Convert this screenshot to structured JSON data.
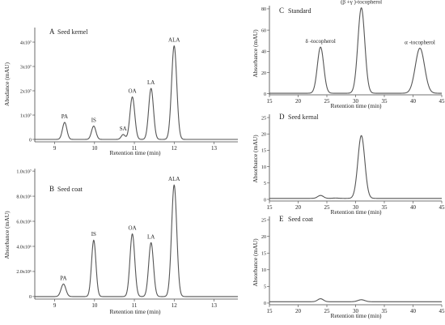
{
  "chart_data": [
    {
      "id": "A",
      "type": "line",
      "panel_letter": "A",
      "title": "Seed kernel",
      "xlabel": "Retention time (min)",
      "ylabel": "Abudance (mAU)",
      "xlim": [
        8.5,
        13.6
      ],
      "ylim": [
        -1000000,
        46000000
      ],
      "xticks": [
        9,
        10,
        11,
        12,
        13
      ],
      "xticklabels": [
        "9",
        "10",
        "11",
        "12",
        "13"
      ],
      "yticks": [
        0,
        10000000,
        20000000,
        30000000,
        40000000
      ],
      "yticklabels": [
        "0",
        "1x10⁷",
        "2x10⁷",
        "3x10⁷",
        "4x10⁷"
      ],
      "baseline": 0,
      "grid": false,
      "peaks": [
        {
          "label": "PA",
          "x": 9.25,
          "y": 7000000,
          "width": 0.055
        },
        {
          "label": "IS",
          "x": 9.98,
          "y": 5500000,
          "width": 0.055
        },
        {
          "label": "SA",
          "x": 10.72,
          "y": 2000000,
          "width": 0.05
        },
        {
          "label": "OA",
          "x": 10.95,
          "y": 17500000,
          "width": 0.06
        },
        {
          "label": "LA",
          "x": 11.42,
          "y": 21000000,
          "width": 0.06
        },
        {
          "label": "ALA",
          "x": 12.0,
          "y": 38500000,
          "width": 0.065
        }
      ]
    },
    {
      "id": "B",
      "type": "line",
      "panel_letter": "B",
      "title": "Seed coat",
      "xlabel": "Retention time (min)",
      "ylabel": "Absorbance (mAU)",
      "xlim": [
        8.5,
        13.6
      ],
      "ylim": [
        -200000,
        10200000
      ],
      "xticks": [
        9,
        10,
        11,
        12,
        13
      ],
      "xticklabels": [
        "9",
        "10",
        "11",
        "12",
        "13"
      ],
      "yticks": [
        0,
        2000000,
        4000000,
        6000000,
        8000000,
        10000000
      ],
      "yticklabels": [
        "0",
        "2.0x10⁶",
        "4.0x10⁶",
        "6.0x10⁶",
        "8.0x10⁶",
        "1.0x10⁷"
      ],
      "baseline": 0,
      "grid": false,
      "peaks": [
        {
          "label": "PA",
          "x": 9.22,
          "y": 1000000,
          "width": 0.06
        },
        {
          "label": "IS",
          "x": 9.98,
          "y": 4500000,
          "width": 0.055
        },
        {
          "label": "OA",
          "x": 10.95,
          "y": 5000000,
          "width": 0.06
        },
        {
          "label": "LA",
          "x": 11.42,
          "y": 4300000,
          "width": 0.06
        },
        {
          "label": "ALA",
          "x": 12.0,
          "y": 8900000,
          "width": 0.065
        }
      ]
    },
    {
      "id": "C",
      "type": "line",
      "panel_letter": "C",
      "title": "Standard",
      "xlabel": "Retention time (min)",
      "ylabel": "Absorbance (mAU)",
      "xlim": [
        15,
        45
      ],
      "ylim": [
        -1,
        83
      ],
      "xticks": [
        15,
        20,
        25,
        30,
        35,
        40,
        45
      ],
      "xticklabels": [
        "15",
        "20",
        "25",
        "30",
        "35",
        "40",
        "45"
      ],
      "yticks": [
        0,
        20,
        40,
        60,
        80
      ],
      "yticklabels": [
        "0",
        "20",
        "40",
        "60",
        "80"
      ],
      "baseline": 0.5,
      "grid": false,
      "peaks": [
        {
          "label": "δ -tocopherol",
          "x": 23.9,
          "y": 44,
          "width": 0.55
        },
        {
          "label": "(β +γ )-tocopherol",
          "x": 31.0,
          "y": 81,
          "width": 0.6
        },
        {
          "label": "α -tocopherol",
          "x": 41.2,
          "y": 43,
          "width": 0.8
        }
      ]
    },
    {
      "id": "D",
      "type": "line",
      "panel_letter": "D",
      "title": "Seed kernal",
      "xlabel": "Retention time (min)",
      "ylabel": "Absorbance (mAU)",
      "xlim": [
        15,
        45
      ],
      "ylim": [
        -0.5,
        26
      ],
      "xticks": [
        15,
        20,
        25,
        30,
        35,
        40,
        45
      ],
      "xticklabels": [
        "15",
        "20",
        "25",
        "30",
        "35",
        "40",
        "45"
      ],
      "yticks": [
        0,
        5,
        10,
        15,
        20,
        25
      ],
      "yticklabels": [
        "0",
        "5",
        "10",
        "15",
        "20",
        "25"
      ],
      "baseline": 0.3,
      "grid": false,
      "peaks": [
        {
          "label": "",
          "x": 23.9,
          "y": 1.2,
          "width": 0.5
        },
        {
          "label": "",
          "x": 26.5,
          "y": 0.4,
          "width": 0.5
        },
        {
          "label": "",
          "x": 31.0,
          "y": 19.5,
          "width": 0.6
        }
      ]
    },
    {
      "id": "E",
      "type": "line",
      "panel_letter": "E",
      "title": "Seed coat",
      "xlabel": "Retention time (min)",
      "ylabel": "Absorbance (mAU)",
      "xlim": [
        15,
        45
      ],
      "ylim": [
        -0.5,
        26
      ],
      "xticks": [
        15,
        20,
        25,
        30,
        35,
        40,
        45
      ],
      "xticklabels": [
        "15",
        "20",
        "25",
        "30",
        "35",
        "40",
        "45"
      ],
      "yticks": [
        0,
        5,
        10,
        15,
        20,
        25
      ],
      "yticklabels": [
        "0",
        "5",
        "10",
        "15",
        "20",
        "25"
      ],
      "baseline": 0.4,
      "grid": false,
      "peaks": [
        {
          "label": "",
          "x": 23.9,
          "y": 1.3,
          "width": 0.5
        },
        {
          "label": "",
          "x": 31.0,
          "y": 1.0,
          "width": 0.6
        },
        {
          "label": "",
          "x": 35.0,
          "y": 0.4,
          "width": 0.7
        }
      ]
    }
  ]
}
